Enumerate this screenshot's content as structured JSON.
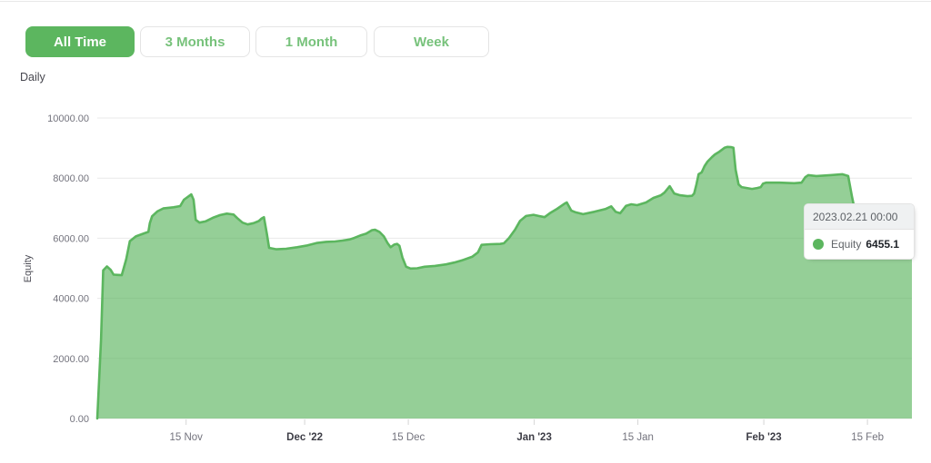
{
  "frequency_label": "Daily",
  "filters": {
    "items": [
      {
        "label": "All Time",
        "active": true
      },
      {
        "label": "3 Months",
        "active": false
      },
      {
        "label": "1 Month",
        "active": false
      },
      {
        "label": "Week",
        "active": false
      }
    ]
  },
  "tooltip": {
    "date": "2023.02.21 00:00",
    "series_label": "Equity",
    "value": "6455.1"
  },
  "colors": {
    "accent_green": "#5cb65f",
    "area_fill": "rgba(92,182,95,0.65)",
    "inactive_filter_text": "#77c27b",
    "grid_line": "#e9e9e9"
  },
  "chart_data": {
    "type": "area",
    "title": "",
    "ylabel": "Equity",
    "ylim": [
      0,
      10000
    ],
    "grid": "horizontal-only",
    "legend_position": "none",
    "series_name": "Equity",
    "y_ticks": [
      {
        "value": 0,
        "label": "0.00"
      },
      {
        "value": 2000,
        "label": "2000.00"
      },
      {
        "value": 4000,
        "label": "4000.00"
      },
      {
        "value": 6000,
        "label": "6000.00"
      },
      {
        "value": 8000,
        "label": "8000.00"
      },
      {
        "value": 10000,
        "label": "10000.00"
      }
    ],
    "x_domain_days": [
      0,
      110
    ],
    "x_start_date": "2022-11-03",
    "x_end_date": "2023-02-21",
    "x_ticks": [
      {
        "day": 12,
        "label": "15 Nov",
        "bold": false
      },
      {
        "day": 28,
        "label": "Dec '22",
        "bold": true
      },
      {
        "day": 42,
        "label": "15 Dec",
        "bold": false
      },
      {
        "day": 59,
        "label": "Jan '23",
        "bold": true
      },
      {
        "day": 73,
        "label": "15 Jan",
        "bold": false
      },
      {
        "day": 90,
        "label": "Feb '23",
        "bold": true
      },
      {
        "day": 104,
        "label": "15 Feb",
        "bold": false
      }
    ],
    "points": [
      [
        0,
        0
      ],
      [
        0.5,
        2600
      ],
      [
        0.8,
        4930
      ],
      [
        1.3,
        5060
      ],
      [
        1.8,
        4950
      ],
      [
        2.2,
        4790
      ],
      [
        3.3,
        4770
      ],
      [
        3.9,
        5300
      ],
      [
        4.4,
        5900
      ],
      [
        5.2,
        6060
      ],
      [
        6.3,
        6160
      ],
      [
        6.9,
        6210
      ],
      [
        7.1,
        6500
      ],
      [
        7.4,
        6730
      ],
      [
        8.1,
        6890
      ],
      [
        8.9,
        6990
      ],
      [
        10.3,
        7030
      ],
      [
        11.2,
        7070
      ],
      [
        11.7,
        7280
      ],
      [
        12.3,
        7390
      ],
      [
        12.7,
        7460
      ],
      [
        13.0,
        7280
      ],
      [
        13.3,
        6610
      ],
      [
        13.8,
        6520
      ],
      [
        14.6,
        6560
      ],
      [
        15.6,
        6680
      ],
      [
        16.6,
        6770
      ],
      [
        17.5,
        6820
      ],
      [
        18.4,
        6790
      ],
      [
        18.9,
        6670
      ],
      [
        19.6,
        6520
      ],
      [
        20.3,
        6460
      ],
      [
        21.1,
        6500
      ],
      [
        21.8,
        6570
      ],
      [
        22.2,
        6660
      ],
      [
        22.5,
        6700
      ],
      [
        22.9,
        6150
      ],
      [
        23.2,
        5680
      ],
      [
        24.2,
        5630
      ],
      [
        25.5,
        5650
      ],
      [
        27.0,
        5700
      ],
      [
        28.4,
        5760
      ],
      [
        29.6,
        5840
      ],
      [
        30.9,
        5880
      ],
      [
        32.1,
        5890
      ],
      [
        33.1,
        5920
      ],
      [
        34.1,
        5960
      ],
      [
        34.7,
        6010
      ],
      [
        35.5,
        6090
      ],
      [
        36.3,
        6150
      ],
      [
        37.1,
        6270
      ],
      [
        37.5,
        6280
      ],
      [
        38.1,
        6210
      ],
      [
        38.7,
        6060
      ],
      [
        39.2,
        5840
      ],
      [
        39.6,
        5700
      ],
      [
        40.1,
        5790
      ],
      [
        40.5,
        5810
      ],
      [
        40.8,
        5750
      ],
      [
        41.2,
        5360
      ],
      [
        41.7,
        5050
      ],
      [
        42.3,
        4990
      ],
      [
        43.2,
        5000
      ],
      [
        44.2,
        5050
      ],
      [
        45.6,
        5080
      ],
      [
        47.1,
        5130
      ],
      [
        48.2,
        5190
      ],
      [
        49.2,
        5260
      ],
      [
        50.6,
        5380
      ],
      [
        51.4,
        5530
      ],
      [
        51.9,
        5780
      ],
      [
        53.1,
        5800
      ],
      [
        54.4,
        5810
      ],
      [
        54.9,
        5830
      ],
      [
        55.6,
        6010
      ],
      [
        56.4,
        6280
      ],
      [
        57.1,
        6580
      ],
      [
        57.9,
        6740
      ],
      [
        58.9,
        6780
      ],
      [
        59.6,
        6740
      ],
      [
        60.4,
        6700
      ],
      [
        61.1,
        6830
      ],
      [
        62.1,
        6980
      ],
      [
        63.1,
        7150
      ],
      [
        63.4,
        7190
      ],
      [
        64.0,
        6920
      ],
      [
        64.6,
        6860
      ],
      [
        65.6,
        6800
      ],
      [
        67.1,
        6880
      ],
      [
        68.6,
        6970
      ],
      [
        69.4,
        7060
      ],
      [
        70.0,
        6880
      ],
      [
        70.6,
        6830
      ],
      [
        71.4,
        7080
      ],
      [
        72.1,
        7130
      ],
      [
        72.9,
        7100
      ],
      [
        74.1,
        7190
      ],
      [
        75.1,
        7340
      ],
      [
        76.1,
        7430
      ],
      [
        76.6,
        7520
      ],
      [
        77.3,
        7730
      ],
      [
        77.9,
        7490
      ],
      [
        78.7,
        7430
      ],
      [
        79.7,
        7400
      ],
      [
        80.3,
        7410
      ],
      [
        80.6,
        7490
      ],
      [
        80.9,
        7790
      ],
      [
        81.2,
        8130
      ],
      [
        81.6,
        8190
      ],
      [
        82.0,
        8400
      ],
      [
        82.4,
        8550
      ],
      [
        83.0,
        8700
      ],
      [
        83.4,
        8790
      ],
      [
        84.0,
        8880
      ],
      [
        84.7,
        9010
      ],
      [
        85.1,
        9040
      ],
      [
        85.6,
        9030
      ],
      [
        85.9,
        9010
      ],
      [
        86.2,
        8280
      ],
      [
        86.6,
        7790
      ],
      [
        87.0,
        7700
      ],
      [
        87.7,
        7670
      ],
      [
        88.4,
        7640
      ],
      [
        89.1,
        7670
      ],
      [
        89.6,
        7700
      ],
      [
        89.9,
        7820
      ],
      [
        90.3,
        7850
      ],
      [
        92.1,
        7850
      ],
      [
        94.1,
        7830
      ],
      [
        95.1,
        7850
      ],
      [
        95.6,
        8030
      ],
      [
        96.0,
        8100
      ],
      [
        97.1,
        8070
      ],
      [
        99.0,
        8100
      ],
      [
        100.6,
        8130
      ],
      [
        101.4,
        8070
      ],
      [
        101.9,
        7400
      ],
      [
        102.4,
        6800
      ],
      [
        103.1,
        6500
      ],
      [
        105.0,
        6470
      ],
      [
        107.0,
        6490
      ],
      [
        110,
        6455.1
      ]
    ]
  }
}
